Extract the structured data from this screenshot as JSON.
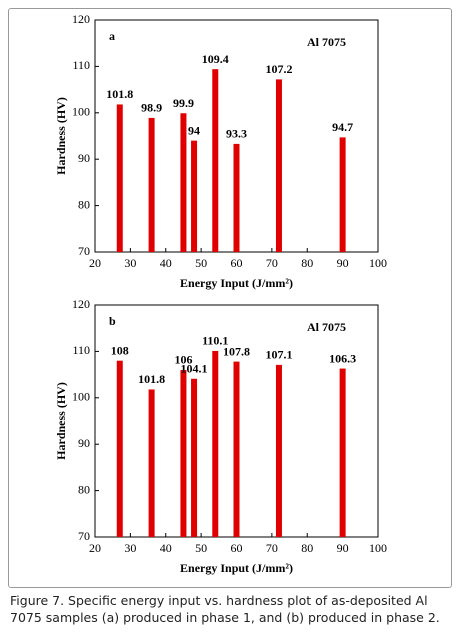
{
  "chart_data": [
    {
      "type": "bar",
      "panel_label": "a",
      "annotation": "Al 7075",
      "xlabel": "Energy Input (J/mm²)",
      "ylabel": "Hardness (HV)",
      "x": [
        27,
        36,
        45,
        48,
        54,
        60,
        72,
        90
      ],
      "values": [
        101.8,
        98.9,
        99.9,
        94,
        109.4,
        93.3,
        107.2,
        94.7
      ],
      "color": "#e00000",
      "xlim": [
        20,
        100
      ],
      "xticks": [
        20,
        30,
        40,
        50,
        60,
        70,
        80,
        90,
        100
      ],
      "ylim": [
        70,
        120
      ],
      "yticks": [
        70,
        80,
        90,
        100,
        110,
        120
      ]
    },
    {
      "type": "bar",
      "panel_label": "b",
      "annotation": "Al 7075",
      "xlabel": "Energy Input (J/mm²)",
      "ylabel": "Hardness (HV)",
      "x": [
        27,
        36,
        45,
        48,
        54,
        60,
        72,
        90
      ],
      "values": [
        108,
        101.8,
        106,
        104.1,
        110.1,
        107.8,
        107.1,
        106.3
      ],
      "color": "#e00000",
      "xlim": [
        20,
        100
      ],
      "xticks": [
        20,
        30,
        40,
        50,
        60,
        70,
        80,
        90,
        100
      ],
      "ylim": [
        70,
        120
      ],
      "yticks": [
        70,
        80,
        90,
        100,
        110,
        120
      ]
    }
  ],
  "caption": "Figure 7. Specific energy input vs. hardness plot of as-deposited Al 7075 samples (a) produced in phase 1, and (b) produced in phase 2."
}
